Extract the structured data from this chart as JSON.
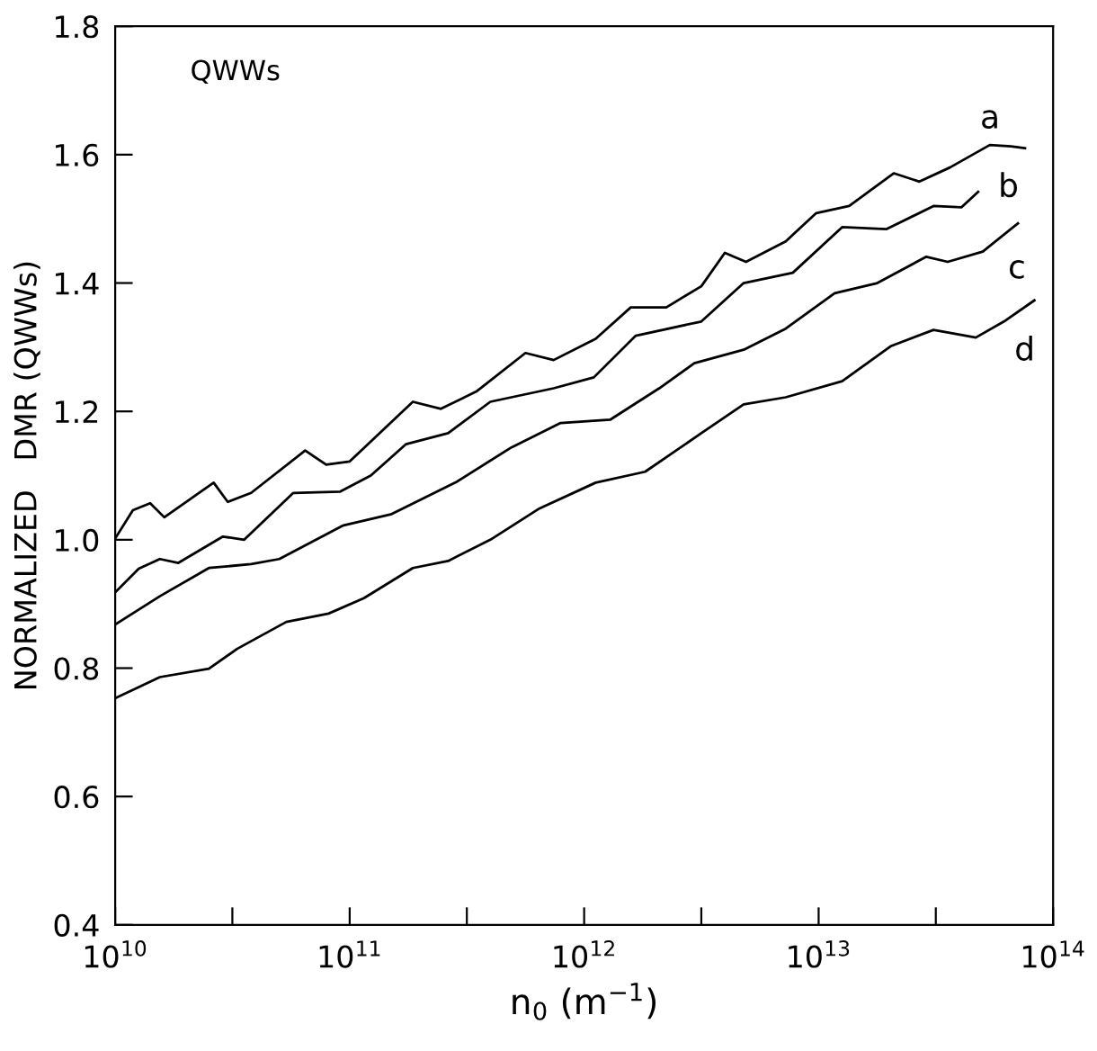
{
  "chart_data": {
    "type": "line",
    "xlabel": "n$_{0}$ (m$^{−1}$)",
    "ylabel": "NORMALIZED   DMR (QWWs)",
    "annotations": [
      "QWWs"
    ],
    "log": "x",
    "grid": false,
    "marker": "none",
    "line_style": "solid",
    "xlim": [
      10000000000.0,
      100000000000000.0
    ],
    "ylim": [
      0.4,
      1.8
    ],
    "xticks": [
      {
        "value": 10000000000.0,
        "label": "10$^{10}$"
      },
      {
        "value": 31600000000.0,
        "label": null
      },
      {
        "value": 100000000000.0,
        "label": "10$^{11}$"
      },
      {
        "value": 316000000000.0,
        "label": null
      },
      {
        "value": 1000000000000.0,
        "label": "10$^{12}$"
      },
      {
        "value": 3160000000000.0,
        "label": null
      },
      {
        "value": 10000000000000.0,
        "label": "10$^{13}$"
      },
      {
        "value": 31600000000000.0,
        "label": null
      },
      {
        "value": 100000000000000.0,
        "label": "10$^{14}$"
      }
    ],
    "yticks": [
      {
        "value": 0.4,
        "label": "0.4"
      },
      {
        "value": 0.6,
        "label": "0.6"
      },
      {
        "value": 0.8,
        "label": "0.8"
      },
      {
        "value": 1.0,
        "label": "1.0"
      },
      {
        "value": 1.2,
        "label": "1.2"
      },
      {
        "value": 1.4,
        "label": "1.4"
      },
      {
        "value": 1.6,
        "label": "1.6"
      },
      {
        "value": 1.8,
        "label": "1.8"
      }
    ],
    "series": [
      {
        "name": "a",
        "color": "#000000",
        "x": [
          10000000000.0,
          11900000000.0,
          14100000000.0,
          16200000000.0,
          26300000000.0,
          30200000000.0,
          38000000000.0,
          64600000000.0,
          79400000000.0,
          100000000000.0,
          186000000000.0,
          245000000000.0,
          347000000000.0,
          562000000000.0,
          741000000000.0,
          1120000000000.0,
          1580000000000.0,
          2240000000000.0,
          3160000000000.0,
          3980000000000.0,
          4900000000000.0,
          7240000000000.0,
          9770000000000.0,
          13500000000000.0,
          20900000000000.0,
          26900000000000.0,
          36300000000000.0,
          53700000000000.0,
          66100000000000.0,
          75900000000000.0
        ],
        "values": [
          1.002,
          1.046,
          1.057,
          1.035,
          1.089,
          1.059,
          1.073,
          1.139,
          1.117,
          1.122,
          1.215,
          1.204,
          1.231,
          1.291,
          1.28,
          1.313,
          1.362,
          1.362,
          1.395,
          1.447,
          1.433,
          1.465,
          1.509,
          1.52,
          1.571,
          1.558,
          1.58,
          1.615,
          1.613,
          1.61
        ]
      },
      {
        "name": "b",
        "color": "#000000",
        "x": [
          10000000000.0,
          12600000000.0,
          15500000000.0,
          18600000000.0,
          28800000000.0,
          35500000000.0,
          57500000000.0,
          91200000000.0,
          123000000000.0,
          174000000000.0,
          263000000000.0,
          398000000000.0,
          741000000000.0,
          1100000000000.0,
          1660000000000.0,
          3160000000000.0,
          4790000000000.0,
          7760000000000.0,
          12600000000000.0,
          19500000000000.0,
          30900000000000.0,
          40700000000000.0,
          47900000000000.0
        ],
        "values": [
          0.918,
          0.955,
          0.97,
          0.964,
          1.005,
          1.0,
          1.073,
          1.075,
          1.1,
          1.149,
          1.166,
          1.215,
          1.236,
          1.253,
          1.318,
          1.34,
          1.4,
          1.416,
          1.487,
          1.484,
          1.52,
          1.518,
          1.542
        ]
      },
      {
        "name": "c",
        "color": "#000000",
        "x": [
          10000000000.0,
          15500000000.0,
          25100000000.0,
          38000000000.0,
          50100000000.0,
          93300000000.0,
          151000000000.0,
          282000000000.0,
          490000000000.0,
          794000000000.0,
          1290000000000.0,
          2090000000000.0,
          2950000000000.0,
          4790000000000.0,
          7240000000000.0,
          11700000000000.0,
          17800000000000.0,
          28800000000000.0,
          35500000000000.0,
          50100000000000.0,
          70800000000000.0
        ],
        "values": [
          0.868,
          0.912,
          0.956,
          0.962,
          0.97,
          1.022,
          1.04,
          1.089,
          1.144,
          1.182,
          1.187,
          1.236,
          1.275,
          1.296,
          1.329,
          1.384,
          1.4,
          1.441,
          1.433,
          1.449,
          1.493
        ]
      },
      {
        "name": "d",
        "color": "#000000",
        "x": [
          10000000000.0,
          15500000000.0,
          25100000000.0,
          33100000000.0,
          53700000000.0,
          81300000000.0,
          115000000000.0,
          186000000000.0,
          263000000000.0,
          398000000000.0,
          646000000000.0,
          1120000000000.0,
          1820000000000.0,
          3160000000000.0,
          4790000000000.0,
          7240000000000.0,
          12600000000000.0,
          20400000000000.0,
          30900000000000.0,
          46800000000000.0,
          61700000000000.0,
          83200000000000.0
        ],
        "values": [
          0.753,
          0.786,
          0.799,
          0.83,
          0.872,
          0.885,
          0.909,
          0.956,
          0.967,
          1.0,
          1.049,
          1.089,
          1.106,
          1.166,
          1.211,
          1.222,
          1.247,
          1.302,
          1.327,
          1.315,
          1.34,
          1.373
        ]
      }
    ]
  }
}
